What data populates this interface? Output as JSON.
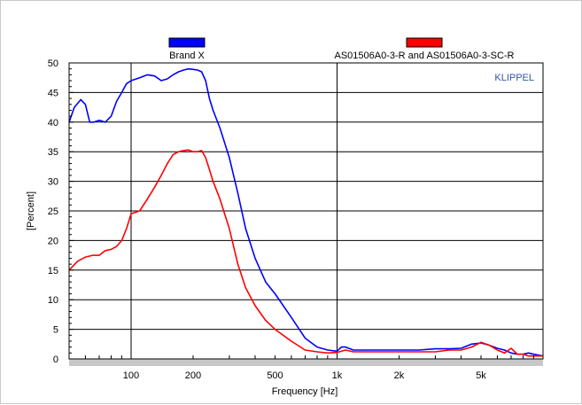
{
  "chart_data": {
    "type": "line",
    "title": "",
    "watermark": "KLIPPEL",
    "xlabel": "Frequency [Hz]",
    "ylabel": "[Percent]",
    "x_scale": "log",
    "xlim": [
      50,
      10000
    ],
    "ylim": [
      0,
      50
    ],
    "y_ticks": [
      "0",
      "5",
      "10",
      "15",
      "20",
      "25",
      "30",
      "35",
      "40",
      "45",
      "50"
    ],
    "x_ticks": [
      {
        "value": 100,
        "label": "100"
      },
      {
        "value": 200,
        "label": "200"
      },
      {
        "value": 500,
        "label": "500"
      },
      {
        "value": 1000,
        "label": "1k"
      },
      {
        "value": 2000,
        "label": "2k"
      },
      {
        "value": 5000,
        "label": "5k"
      }
    ],
    "grid": true,
    "legend_position": "top",
    "series": [
      {
        "name": "Brand X",
        "color": "#0000ff",
        "x": [
          50,
          53,
          57,
          60,
          63,
          66,
          70,
          75,
          80,
          85,
          90,
          95,
          100,
          110,
          120,
          130,
          140,
          150,
          160,
          170,
          180,
          190,
          200,
          210,
          220,
          230,
          240,
          250,
          270,
          300,
          330,
          360,
          400,
          450,
          500,
          600,
          700,
          800,
          900,
          1000,
          1050,
          1100,
          1200,
          1500,
          2000,
          2500,
          3000,
          3500,
          4000,
          4500,
          5000,
          5500,
          6000,
          6500,
          7000,
          7500,
          8000,
          8500,
          9000,
          10000
        ],
        "values": [
          40,
          42.5,
          43.8,
          43,
          40,
          40,
          40.3,
          40,
          41,
          43.5,
          45,
          46.5,
          47,
          47.5,
          48,
          47.8,
          47,
          47.3,
          48,
          48.5,
          48.8,
          49,
          48.9,
          48.8,
          48.5,
          47,
          44,
          42,
          39,
          34,
          28,
          22,
          17,
          13,
          11,
          7,
          3.5,
          2,
          1.5,
          1.3,
          2,
          2,
          1.5,
          1.5,
          1.5,
          1.5,
          1.7,
          1.7,
          1.8,
          2.5,
          2.7,
          2.3,
          1.8,
          1.5,
          1,
          0.8,
          0.8,
          1,
          0.8,
          0.5
        ]
      },
      {
        "name": "AS01506A0-3-R and AS01506A0-3-SC-R",
        "color": "#ff0000",
        "x": [
          50,
          55,
          60,
          65,
          70,
          75,
          80,
          85,
          90,
          95,
          100,
          110,
          120,
          130,
          140,
          150,
          160,
          170,
          180,
          190,
          200,
          210,
          220,
          230,
          240,
          250,
          270,
          300,
          330,
          360,
          400,
          450,
          500,
          600,
          700,
          800,
          900,
          1000,
          1100,
          1200,
          1500,
          2000,
          2500,
          3000,
          3500,
          4000,
          4500,
          5000,
          5500,
          6000,
          6500,
          7000,
          7500,
          8000,
          8500,
          9000,
          10000
        ],
        "values": [
          15,
          16.5,
          17.2,
          17.5,
          17.5,
          18.3,
          18.5,
          19,
          20,
          22,
          24.5,
          25,
          27,
          29,
          31,
          33,
          34.5,
          35,
          35.2,
          35.3,
          35,
          35,
          35.2,
          34,
          32,
          30,
          27,
          22,
          16,
          12,
          9,
          6.5,
          5,
          3,
          1.5,
          1.2,
          1,
          1.1,
          1.5,
          1.2,
          1.2,
          1.2,
          1.2,
          1.2,
          1.5,
          1.5,
          2,
          2.8,
          2.3,
          1.5,
          1,
          1.8,
          0.8,
          0.8,
          0.5,
          0.5,
          0.5
        ]
      }
    ]
  }
}
